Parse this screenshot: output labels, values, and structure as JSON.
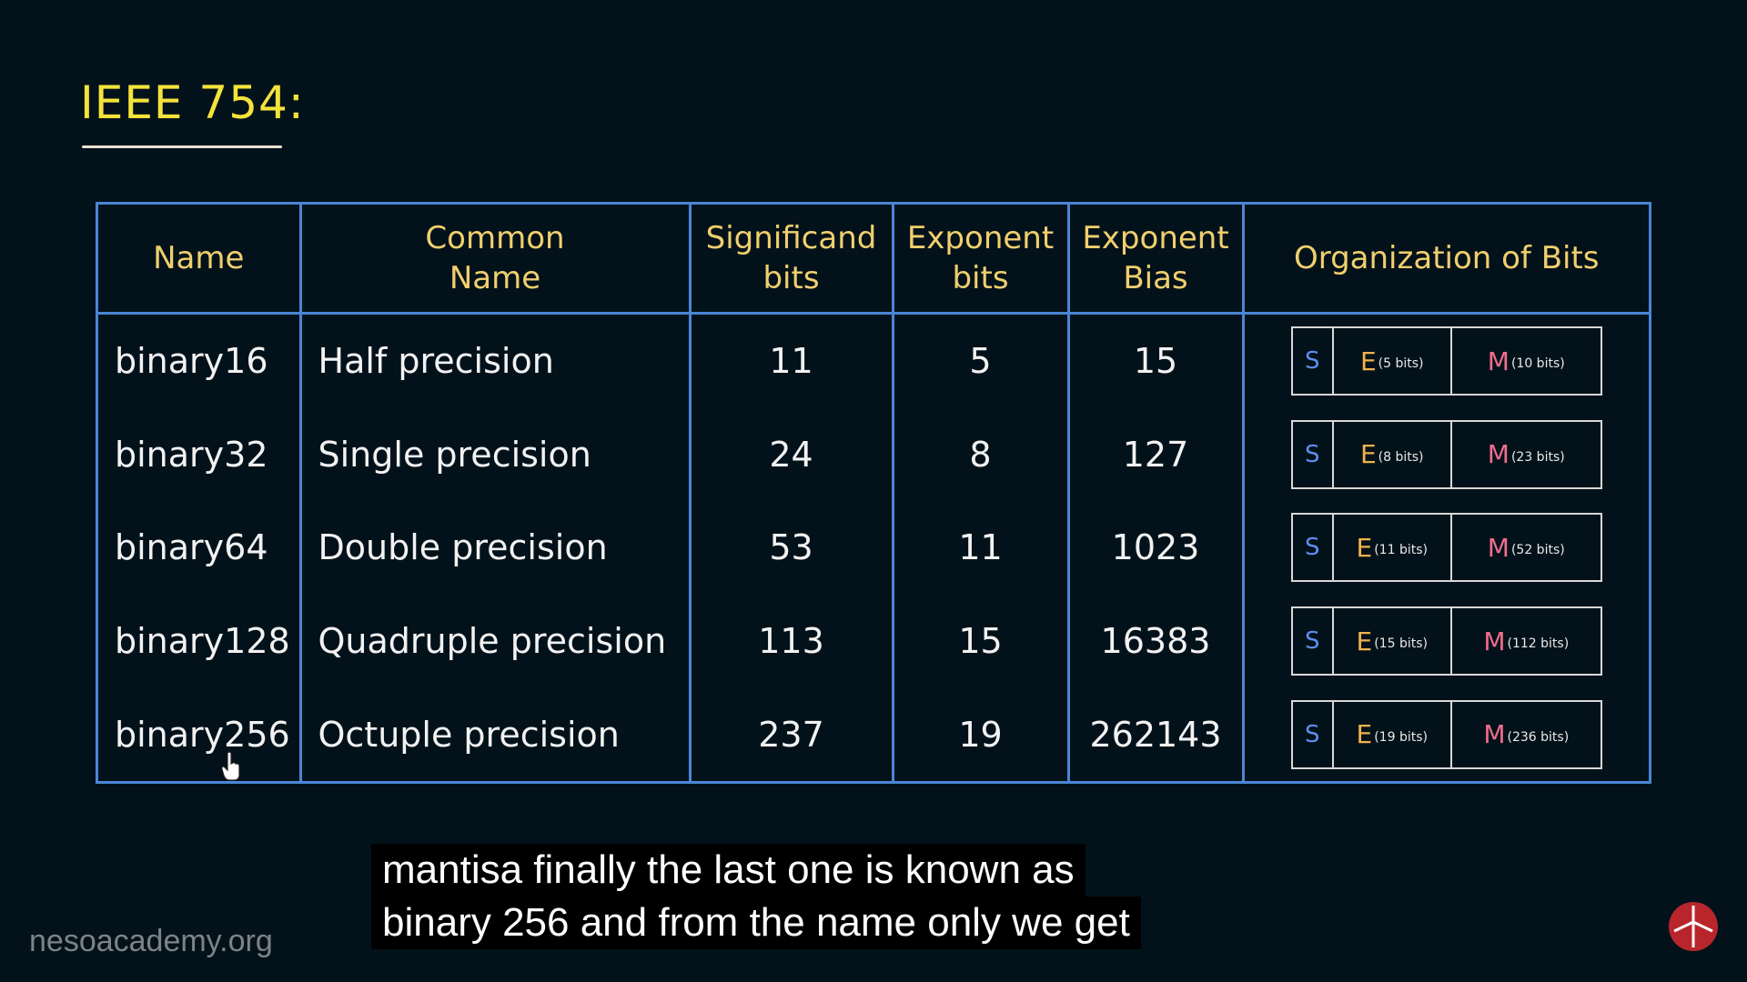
{
  "title": "IEEE 754:",
  "table": {
    "headers": {
      "name": "Name",
      "common_name_line1": "Common",
      "common_name_line2": "Name",
      "significand_line1": "Significand",
      "significand_line2": "bits",
      "exponent_line1": "Exponent",
      "exponent_line2": "bits",
      "bias_line1": "Exponent",
      "bias_line2": "Bias",
      "organization": "Organization of Bits"
    },
    "rows": [
      {
        "name": "binary16",
        "common": "Half precision",
        "significand": "11",
        "exponent": "5",
        "bias": "15",
        "s": "S",
        "e": "E",
        "e_bits": "(5 bits)",
        "m": "M",
        "m_bits": "(10 bits)"
      },
      {
        "name": "binary32",
        "common": "Single precision",
        "significand": "24",
        "exponent": "8",
        "bias": "127",
        "s": "S",
        "e": "E",
        "e_bits": "(8 bits)",
        "m": "M",
        "m_bits": "(23 bits)"
      },
      {
        "name": "binary64",
        "common": "Double precision",
        "significand": "53",
        "exponent": "11",
        "bias": "1023",
        "s": "S",
        "e": "E",
        "e_bits": "(11 bits)",
        "m": "M",
        "m_bits": "(52 bits)"
      },
      {
        "name": "binary128",
        "common": "Quadruple precision",
        "significand": "113",
        "exponent": "15",
        "bias": "16383",
        "s": "S",
        "e": "E",
        "e_bits": "(15 bits)",
        "m": "M",
        "m_bits": "(112 bits)"
      },
      {
        "name": "binary256",
        "common": "Octuple precision",
        "significand": "237",
        "exponent": "19",
        "bias": "262143",
        "s": "S",
        "e": "E",
        "e_bits": "(19 bits)",
        "m": "M",
        "m_bits": "(236 bits)"
      }
    ]
  },
  "caption": {
    "line1": "mantisa finally the last one is known as",
    "line2": "binary 256 and from the name only we get"
  },
  "watermark": "nesoacademy.org",
  "colors": {
    "background": "#03121a",
    "title": "#f4e33a",
    "table_border": "#4a86d6",
    "header_text": "#f0cf6e",
    "sign_bit": "#5d8ef0",
    "exponent_bits": "#f0b24c",
    "mantissa_bits": "#ef6d8c"
  },
  "icons": {
    "cursor": "hand-pointer-icon",
    "logo": "neso-logo-icon"
  }
}
